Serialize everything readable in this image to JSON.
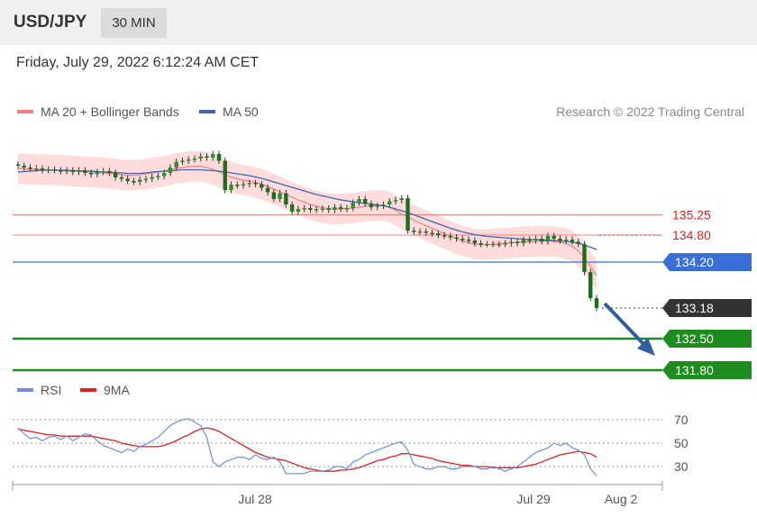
{
  "header": {
    "pair": "USD/JPY",
    "timeframe": "30 MIN"
  },
  "date_line": "Friday, July 29, 2022 6:12:24 AM CET",
  "credit": "Research © 2022 Trading Central",
  "colors": {
    "ma20": "#f08080",
    "ma50": "#3f64b0",
    "band_fill": "#ffd6d6",
    "up": "#2f8f2f",
    "down": "#1f6b1f",
    "resistance": "#f08080",
    "pivot": "#3a6fd8",
    "support": "#1f8c1f",
    "last": "#333333",
    "arrow": "#2f5f9c",
    "rsi": "#6d8fdd",
    "rsi_ma": "#e02020"
  },
  "chart_data": [
    {
      "type": "candlestick",
      "title": "USD/JPY",
      "timeframe": "30 MIN",
      "legend": [
        {
          "name": "MA 20 + Bollinger Bands",
          "color": "#f08080"
        },
        {
          "name": "MA 50",
          "color": "#3f64b0"
        }
      ],
      "legend_position": "top-left",
      "ylim": [
        131.5,
        136.8
      ],
      "levels": [
        {
          "label": "135.25",
          "value": 135.25,
          "kind": "resistance"
        },
        {
          "label": "134.80",
          "value": 134.8,
          "kind": "resistance"
        },
        {
          "label": "134.20",
          "value": 134.2,
          "kind": "pivot"
        },
        {
          "label": "133.18",
          "value": 133.18,
          "kind": "last"
        },
        {
          "label": "132.50",
          "value": 132.5,
          "kind": "support"
        },
        {
          "label": "131.80",
          "value": 131.8,
          "kind": "support"
        }
      ],
      "close": [
        136.34,
        136.3,
        136.28,
        136.28,
        136.24,
        136.26,
        136.24,
        136.22,
        136.24,
        136.2,
        136.24,
        136.18,
        136.15,
        136.2,
        136.22,
        136.18,
        136.08,
        136.05,
        136.0,
        135.98,
        136.03,
        136.05,
        136.09,
        136.11,
        136.18,
        136.3,
        136.43,
        136.45,
        136.48,
        136.5,
        136.55,
        136.52,
        136.6,
        136.45,
        135.8,
        135.92,
        135.9,
        135.93,
        135.96,
        135.93,
        135.85,
        135.75,
        135.6,
        135.73,
        135.48,
        135.32,
        135.38,
        135.4,
        135.36,
        135.38,
        135.39,
        135.36,
        135.42,
        135.38,
        135.4,
        135.52,
        135.6,
        135.5,
        135.42,
        135.45,
        135.48,
        135.55,
        135.58,
        135.62,
        134.9,
        134.88,
        134.88,
        134.85,
        134.84,
        134.8,
        134.78,
        134.75,
        134.72,
        134.7,
        134.68,
        134.62,
        134.6,
        134.6,
        134.6,
        134.6,
        134.62,
        134.65,
        134.62,
        134.7,
        134.68,
        134.72,
        134.66,
        134.78,
        134.72,
        134.68,
        134.7,
        134.65,
        134.6,
        133.98,
        133.4,
        133.18
      ],
      "ma20": [
        136.28,
        136.27,
        136.26,
        136.26,
        136.25,
        136.25,
        136.24,
        136.24,
        136.23,
        136.22,
        136.22,
        136.21,
        136.2,
        136.19,
        136.18,
        136.17,
        136.16,
        136.14,
        136.13,
        136.13,
        136.14,
        136.16,
        136.18,
        136.2,
        136.22,
        136.25,
        136.28,
        136.3,
        136.32,
        136.33,
        136.33,
        136.3,
        136.26,
        136.2,
        136.14,
        136.09,
        136.05,
        136.02,
        136.0,
        135.97,
        135.93,
        135.88,
        135.82,
        135.76,
        135.7,
        135.64,
        135.58,
        135.53,
        135.48,
        135.44,
        135.41,
        135.39,
        135.38,
        135.38,
        135.39,
        135.4,
        135.42,
        135.44,
        135.45,
        135.46,
        135.46,
        135.42,
        135.35,
        135.27,
        135.2,
        135.13,
        135.07,
        135.01,
        134.95,
        134.89,
        134.83,
        134.77,
        134.72,
        134.67,
        134.63,
        134.6,
        134.59,
        134.59,
        134.6,
        134.61,
        134.62,
        134.63,
        134.64,
        134.65,
        134.65,
        134.66,
        134.66,
        134.67,
        134.66,
        134.64,
        134.61,
        134.55,
        134.45,
        134.3,
        134.1,
        133.9
      ],
      "ma50": [
        136.2,
        136.21,
        136.22,
        136.23,
        136.24,
        136.24,
        136.24,
        136.24,
        136.24,
        136.23,
        136.23,
        136.22,
        136.22,
        136.21,
        136.2,
        136.2,
        136.19,
        136.18,
        136.17,
        136.17,
        136.17,
        136.18,
        136.2,
        136.21,
        136.22,
        136.23,
        136.24,
        136.25,
        136.25,
        136.25,
        136.25,
        136.24,
        136.23,
        136.22,
        136.2,
        136.18,
        136.16,
        136.14,
        136.12,
        136.09,
        136.06,
        136.02,
        135.98,
        135.94,
        135.9,
        135.86,
        135.82,
        135.78,
        135.74,
        135.7,
        135.67,
        135.64,
        135.61,
        135.58,
        135.56,
        135.54,
        135.52,
        135.5,
        135.49,
        135.47,
        135.45,
        135.42,
        135.38,
        135.34,
        135.3,
        135.25,
        135.2,
        135.15,
        135.1,
        135.05,
        135.0,
        134.95,
        134.91,
        134.87,
        134.84,
        134.81,
        134.79,
        134.77,
        134.76,
        134.75,
        134.74,
        134.73,
        134.72,
        134.71,
        134.7,
        134.7,
        134.69,
        134.69,
        134.68,
        134.67,
        134.66,
        134.64,
        134.62,
        134.58,
        134.53,
        134.48
      ],
      "bb_width": 0.34,
      "projection": {
        "from": 133.18,
        "to": 131.8
      }
    },
    {
      "type": "line",
      "legend": [
        {
          "name": "RSI",
          "color": "#6d8fdd"
        },
        {
          "name": "9MA",
          "color": "#e02020"
        }
      ],
      "ylim": [
        15,
        78
      ],
      "ticks": [
        70,
        50,
        30
      ],
      "x_labels": [
        "Jul 28",
        "Jul 29",
        "Aug 2"
      ],
      "rsi": [
        63,
        58,
        54,
        55,
        52,
        55,
        56,
        53,
        56,
        52,
        55,
        58,
        57,
        52,
        48,
        46,
        44,
        42,
        45,
        43,
        47,
        49,
        52,
        55,
        60,
        65,
        68,
        70,
        71,
        68,
        65,
        55,
        34,
        30,
        34,
        36,
        38,
        38,
        36,
        40,
        37,
        36,
        38,
        34,
        24,
        24,
        24,
        24,
        26,
        26,
        26,
        27,
        30,
        30,
        28,
        34,
        36,
        40,
        42,
        44,
        46,
        48,
        50,
        51,
        44,
        32,
        30,
        28,
        28,
        30,
        30,
        28,
        28,
        30,
        30,
        30,
        28,
        28,
        30,
        28,
        26,
        28,
        30,
        34,
        38,
        42,
        44,
        46,
        50,
        48,
        50,
        46,
        44,
        40,
        28,
        22
      ],
      "rsi_ma": [
        62,
        61,
        60,
        59,
        58,
        57,
        57,
        56,
        56,
        56,
        56,
        56,
        56,
        55,
        54,
        53,
        52,
        50,
        49,
        48,
        47,
        47,
        47,
        47,
        48,
        50,
        52,
        55,
        57,
        60,
        62,
        63,
        62,
        60,
        57,
        54,
        51,
        48,
        45,
        42,
        40,
        38,
        37,
        36,
        35,
        33,
        31,
        29,
        28,
        27,
        26,
        26,
        26,
        27,
        27,
        28,
        29,
        31,
        33,
        35,
        36,
        38,
        39,
        41,
        41,
        40,
        39,
        38,
        37,
        35,
        34,
        33,
        32,
        31,
        31,
        30,
        30,
        30,
        29,
        29,
        29,
        29,
        29,
        30,
        31,
        32,
        34,
        36,
        38,
        40,
        41,
        42,
        43,
        42,
        41,
        38
      ]
    }
  ]
}
